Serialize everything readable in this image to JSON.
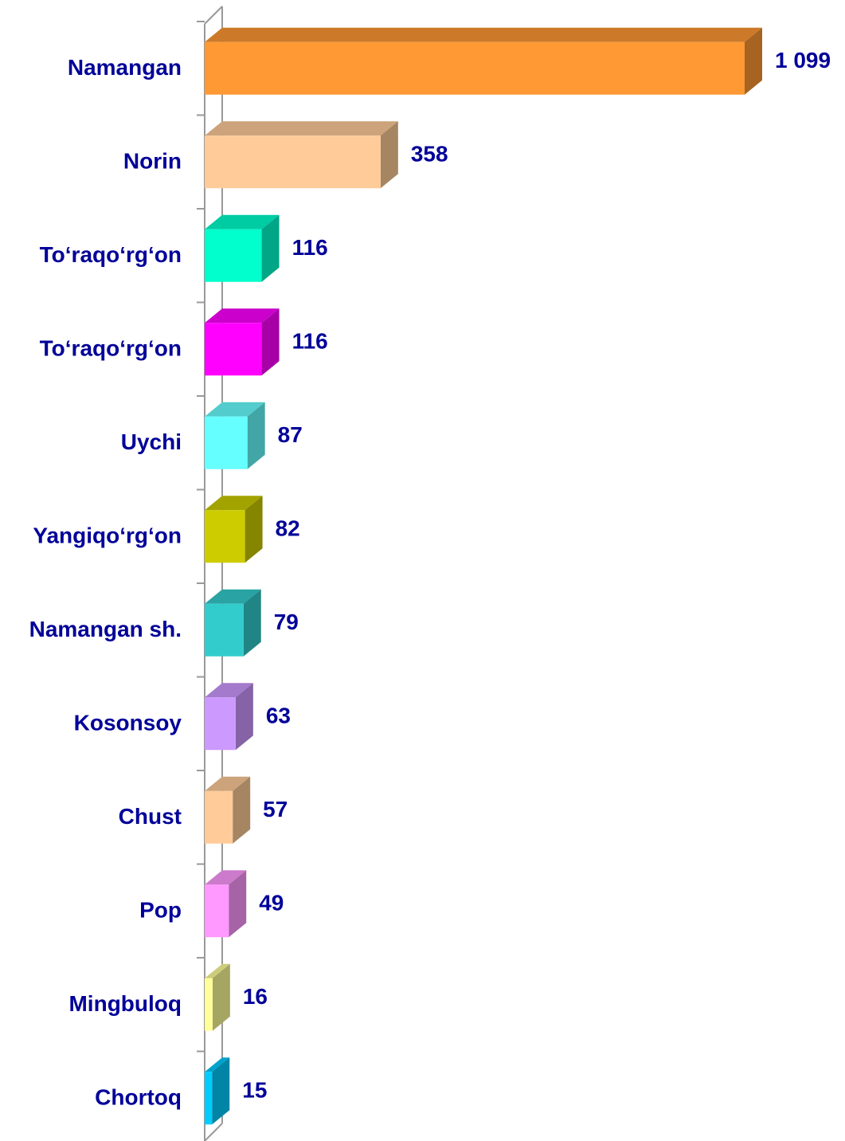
{
  "chart_data": {
    "type": "bar3d_horizontal",
    "categories": [
      "Namangan",
      "Norin",
      "To‘raqo‘rg‘on",
      "To‘raqo‘rg‘on",
      "Uychi",
      "Yangiqo‘rg‘on",
      "Namangan sh.",
      "Kosonsoy",
      "Chust",
      "Pop",
      "Mingbuloq",
      "Chortoq"
    ],
    "values": [
      1099,
      358,
      116,
      116,
      87,
      82,
      79,
      63,
      57,
      49,
      16,
      15
    ],
    "value_labels": [
      "1 099",
      "358",
      "116",
      "116",
      "87",
      "82",
      "79",
      "63",
      "57",
      "49",
      "16",
      "15"
    ],
    "colors": [
      "#ff9933",
      "#ffcc99",
      "#00ffcc",
      "#ff00ff",
      "#66ffff",
      "#cccc00",
      "#33cccc",
      "#cc99ff",
      "#ffcc99",
      "#ff99ff",
      "#ffff99",
      "#00ccff"
    ],
    "xlim": [
      0,
      1100
    ]
  }
}
